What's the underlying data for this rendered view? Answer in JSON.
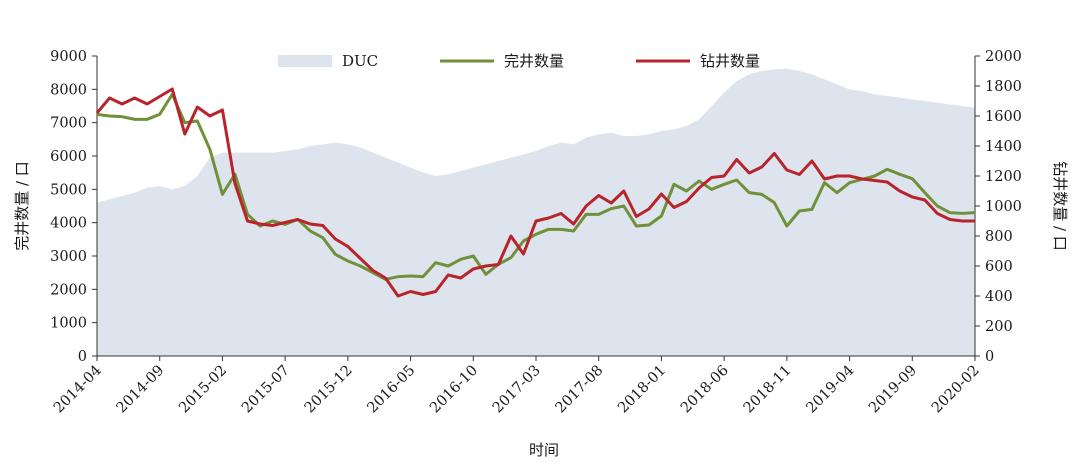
{
  "chart_data": {
    "type": "area+line",
    "xlabel": "时间",
    "ylabel_left": "完井数量 / 口",
    "ylabel_right": "钻井数量 / 口",
    "ylim_left": [
      0,
      9000
    ],
    "ylim_right": [
      0,
      2000
    ],
    "yticks_left": [
      "0",
      "1000",
      "2000",
      "3000",
      "4000",
      "5000",
      "6000",
      "7000",
      "8000",
      "9000"
    ],
    "yticks_right": [
      "0",
      "200",
      "400",
      "600",
      "800",
      "1000",
      "1200",
      "1400",
      "1600",
      "1800",
      "2000"
    ],
    "xtick_labels": [
      "2014-04",
      "2014-09",
      "2015-02",
      "2015-07",
      "2015-12",
      "2016-05",
      "2016-10",
      "2017-03",
      "2017-08",
      "2018-01",
      "2018-06",
      "2018-11",
      "2019-04",
      "2019-09",
      "2020-02"
    ],
    "legend_position": "top-center",
    "colors": {
      "duc": "#dde4ee",
      "completed": "#70913a",
      "drilled": "#b8242a"
    },
    "x": [
      "2014-04",
      "2014-05",
      "2014-06",
      "2014-07",
      "2014-08",
      "2014-09",
      "2014-10",
      "2014-11",
      "2014-12",
      "2015-01",
      "2015-02",
      "2015-03",
      "2015-04",
      "2015-05",
      "2015-06",
      "2015-07",
      "2015-08",
      "2015-09",
      "2015-10",
      "2015-11",
      "2015-12",
      "2016-01",
      "2016-02",
      "2016-03",
      "2016-04",
      "2016-05",
      "2016-06",
      "2016-07",
      "2016-08",
      "2016-09",
      "2016-10",
      "2016-11",
      "2016-12",
      "2017-01",
      "2017-02",
      "2017-03",
      "2017-04",
      "2017-05",
      "2017-06",
      "2017-07",
      "2017-08",
      "2017-09",
      "2017-10",
      "2017-11",
      "2017-12",
      "2018-01",
      "2018-02",
      "2018-03",
      "2018-04",
      "2018-05",
      "2018-06",
      "2018-07",
      "2018-08",
      "2018-09",
      "2018-10",
      "2018-11",
      "2018-12",
      "2019-01",
      "2019-02",
      "2019-03",
      "2019-04",
      "2019-05",
      "2019-06",
      "2019-07",
      "2019-08",
      "2019-09",
      "2019-10",
      "2019-11",
      "2019-12",
      "2020-01",
      "2020-02"
    ],
    "series": [
      {
        "name": "DUC",
        "axis": "left",
        "values": [
          4600,
          4700,
          4800,
          4900,
          5050,
          5100,
          5000,
          5100,
          5400,
          5950,
          6100,
          6100,
          6100,
          6100,
          6100,
          6150,
          6200,
          6300,
          6350,
          6400,
          6350,
          6250,
          6100,
          5950,
          5800,
          5650,
          5500,
          5400,
          5450,
          5550,
          5650,
          5750,
          5850,
          5950,
          6050,
          6150,
          6300,
          6400,
          6350,
          6550,
          6650,
          6700,
          6600,
          6600,
          6650,
          6750,
          6800,
          6900,
          7100,
          7500,
          7900,
          8250,
          8450,
          8550,
          8600,
          8620,
          8550,
          8450,
          8300,
          8150,
          8000,
          7950,
          7850,
          7800,
          7750,
          7700,
          7650,
          7600,
          7550,
          7500,
          7450
        ]
      },
      {
        "name": "完井数量",
        "axis": "left",
        "values": [
          7250,
          7200,
          7180,
          7100,
          7100,
          7250,
          7850,
          7000,
          7050,
          6200,
          4850,
          5450,
          4250,
          3900,
          4050,
          3950,
          4100,
          3750,
          3550,
          3050,
          2850,
          2700,
          2500,
          2300,
          2380,
          2400,
          2380,
          2800,
          2700,
          2900,
          3000,
          2450,
          2750,
          2950,
          3450,
          3650,
          3800,
          3800,
          3750,
          4250,
          4250,
          4420,
          4500,
          3900,
          3930,
          4200,
          5150,
          4950,
          5250,
          5000,
          5150,
          5280,
          4900,
          4850,
          4600,
          3900,
          4350,
          4400,
          5200,
          4900,
          5200,
          5300,
          5400,
          5600,
          5450,
          5320,
          4900,
          4500,
          4300,
          4280,
          4300
        ]
      },
      {
        "name": "钻井数量",
        "axis": "right",
        "values": [
          1620,
          1720,
          1680,
          1720,
          1680,
          1730,
          1780,
          1480,
          1660,
          1600,
          1640,
          1150,
          900,
          880,
          870,
          890,
          910,
          880,
          870,
          780,
          730,
          650,
          570,
          520,
          400,
          430,
          410,
          430,
          540,
          520,
          580,
          600,
          610,
          800,
          680,
          900,
          920,
          950,
          880,
          1000,
          1070,
          1020,
          1100,
          930,
          980,
          1080,
          990,
          1030,
          1120,
          1190,
          1200,
          1310,
          1220,
          1260,
          1350,
          1240,
          1210,
          1300,
          1180,
          1200,
          1200,
          1180,
          1170,
          1160,
          1100,
          1060,
          1040,
          950,
          910,
          900,
          900
        ]
      }
    ]
  }
}
